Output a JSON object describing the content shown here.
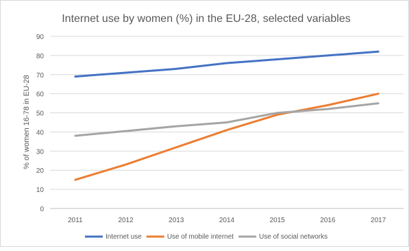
{
  "chart_data": {
    "type": "line",
    "title": "Internet use by women (%) in the EU-28, selected variables",
    "xlabel": "",
    "ylabel": "% of women 16-78 in EU-28",
    "x": [
      "2011",
      "2012",
      "2013",
      "2014",
      "2015",
      "2016",
      "2017"
    ],
    "ylim": [
      0,
      90
    ],
    "yticks": [
      0,
      10,
      20,
      30,
      40,
      50,
      60,
      70,
      80,
      90
    ],
    "grid": true,
    "legend_position": "bottom",
    "series": [
      {
        "name": "Internet use",
        "color": "#4472c4",
        "values": [
          69,
          71,
          73,
          76,
          78,
          80,
          82
        ]
      },
      {
        "name": "Use of mobile internet",
        "color": "#ed7d31",
        "values": [
          15,
          23,
          32,
          41,
          49,
          54,
          60
        ]
      },
      {
        "name": "Use of social networks",
        "color": "#a5a5a5",
        "values": [
          38,
          40.5,
          43,
          45,
          50,
          52,
          55
        ]
      }
    ]
  }
}
